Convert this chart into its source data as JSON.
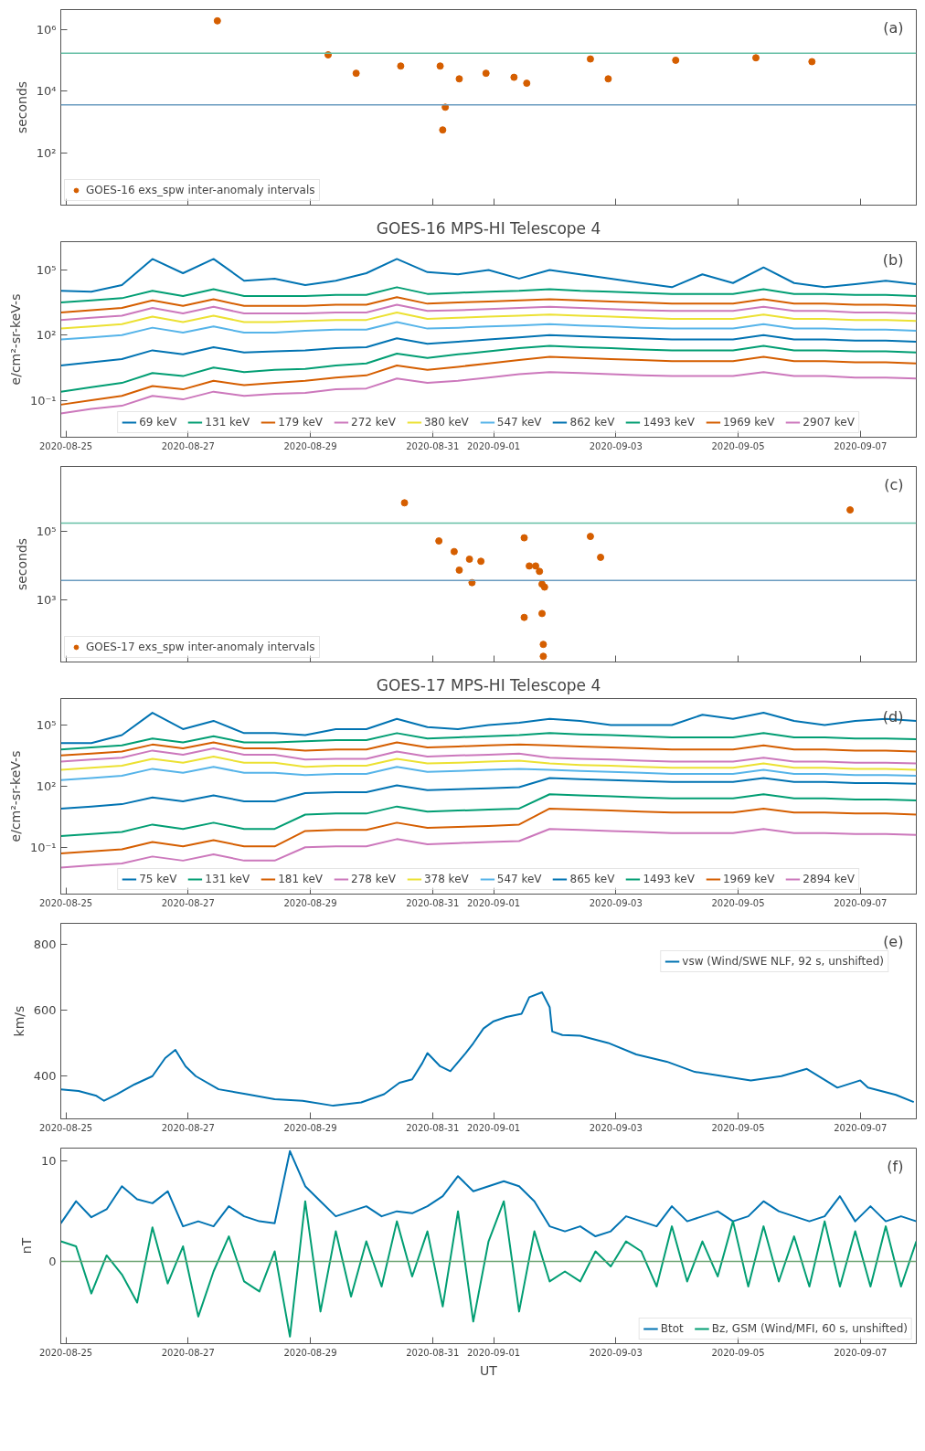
{
  "chart_data": [
    {
      "type": "scatter",
      "ylabel": "seconds",
      "annotations": [
        "(a)"
      ],
      "log": true,
      "marker": "circle",
      "legend": "bottom left",
      "tick_labels": "y",
      "xlim": [
        "2020-08-24T22:00",
        "2020-09-07T22:00"
      ],
      "xticks": [
        "2020-08-25",
        "2020-08-27",
        "2020-08-29",
        "2020-08-31",
        "2020-09-01",
        "2020-09-03",
        "2020-09-05",
        "2020-09-07"
      ],
      "ylim": [
        2,
        4400000
      ],
      "yticks": [
        {
          "value": 100,
          "label": "10²"
        },
        {
          "value": 10000,
          "label": "10⁴"
        },
        {
          "value": 1000000,
          "label": "10⁶"
        }
      ],
      "ref_lines": [
        {
          "axis": "y",
          "value": 170000,
          "color": "#66bfa5"
        },
        {
          "axis": "y",
          "value": 3600,
          "color": "#6a9cc0"
        }
      ],
      "series": [
        {
          "name": "GOES-16 exs_spw inter-anomaly intervals",
          "color": "#d55e00",
          "x": [
            "2020-08-27T11:30",
            "2020-08-29T07:00",
            "2020-08-29T18:00",
            "2020-08-30T11:30",
            "2020-08-31T03:00",
            "2020-08-31T04:00",
            "2020-08-31T05:00",
            "2020-08-31T10:30",
            "2020-08-31T21:00",
            "2020-09-01T08:00",
            "2020-09-01T13:00",
            "2020-09-02T14:00",
            "2020-09-02T21:00",
            "2020-09-03T23:30",
            "2020-09-05T07:00",
            "2020-09-06T05:00"
          ],
          "values": [
            1900000,
            150000,
            38000,
            65000,
            65000,
            550,
            3000,
            25000,
            38000,
            28000,
            18000,
            110000,
            25000,
            100000,
            120000,
            90000
          ]
        }
      ]
    },
    {
      "type": "line",
      "title": "GOES-16 MPS-HI Telescope 4",
      "ylabel": "e/cm²-sr-keV-s",
      "annotations": [
        "(b)"
      ],
      "log": true,
      "legend": "bottom",
      "xlim": [
        "2020-08-24T22:00",
        "2020-09-07T22:00"
      ],
      "xticks": [
        "2020-08-25",
        "2020-08-27",
        "2020-08-29",
        "2020-08-31",
        "2020-09-01",
        "2020-09-03",
        "2020-09-05",
        "2020-09-07"
      ],
      "ylim": [
        0.002,
        2000000
      ],
      "yticks": [
        {
          "value": 0.1,
          "label": "10⁻¹"
        },
        {
          "value": 100,
          "label": "10²"
        },
        {
          "value": 100000,
          "label": "10⁵"
        }
      ],
      "x": [
        "2020-08-24T22:00",
        "2020-08-25T10:00",
        "2020-08-25T22:00",
        "2020-08-26T10:00",
        "2020-08-26T22:00",
        "2020-08-27T10:00",
        "2020-08-27T22:00",
        "2020-08-28T10:00",
        "2020-08-28T22:00",
        "2020-08-29T10:00",
        "2020-08-29T22:00",
        "2020-08-30T10:00",
        "2020-08-30T22:00",
        "2020-08-31T10:00",
        "2020-08-31T22:00",
        "2020-09-01T10:00",
        "2020-09-01T22:00",
        "2020-09-02T10:00",
        "2020-09-02T22:00",
        "2020-09-03T10:00",
        "2020-09-03T22:00",
        "2020-09-04T10:00",
        "2020-09-04T22:00",
        "2020-09-05T10:00",
        "2020-09-05T22:00",
        "2020-09-06T10:00",
        "2020-09-06T22:00",
        "2020-09-07T10:00",
        "2020-09-07T22:00"
      ],
      "series": [
        {
          "name": "69 keV",
          "color": "#0173b2",
          "values": [
            11000.0,
            10000.0,
            20000.0,
            320000.0,
            71000.0,
            320000.0,
            32000.0,
            40000.0,
            20000.0,
            32000.0,
            71000.0,
            320000.0,
            79000.0,
            63000.0,
            100000.0,
            40000.0,
            100000.0,
            63000.0,
            40000.0,
            25000.0,
            16000.0,
            63000.0,
            25000.0,
            130000.0,
            25000.0,
            16000.0,
            22000.0,
            32000.0,
            22000.0
          ]
        },
        {
          "name": "131 keV",
          "color": "#029e73",
          "values": [
            3200.0,
            4000.0,
            5000.0,
            11000.0,
            6300.0,
            13000.0,
            6300.0,
            6300.0,
            6300.0,
            7100.0,
            7100.0,
            16000.0,
            7900.0,
            8900.0,
            10000.0,
            11000.0,
            13000.0,
            11000.0,
            10000.0,
            8900.0,
            7900.0,
            7900.0,
            7900.0,
            13000.0,
            7900.0,
            7900.0,
            7100.0,
            7100.0,
            6300.0
          ]
        },
        {
          "name": "179 keV",
          "color": "#d55e00",
          "values": [
            1100.0,
            1400.0,
            1800.0,
            4000.0,
            2200.0,
            4500.0,
            2200.0,
            2200.0,
            2200.0,
            2500.0,
            2500.0,
            5600.0,
            2800.0,
            3200.0,
            3500.0,
            4000.0,
            4500.0,
            4000.0,
            3500.0,
            3200.0,
            2800.0,
            2800.0,
            2800.0,
            4500.0,
            2800.0,
            2800.0,
            2500.0,
            2500.0,
            2200.0
          ]
        },
        {
          "name": "272 keV",
          "color": "#cc78bc",
          "values": [
            500,
            630,
            790,
            1800.0,
            1000.0,
            2000.0,
            1000.0,
            1000.0,
            1000.0,
            1100.0,
            1100.0,
            2500.0,
            1300.0,
            1400.0,
            1600.0,
            1800.0,
            2000.0,
            1800.0,
            1600.0,
            1400.0,
            1300.0,
            1300.0,
            1300.0,
            2000.0,
            1300.0,
            1300.0,
            1100.0,
            1100.0,
            1000.0
          ]
        },
        {
          "name": "380 keV",
          "color": "#ece133",
          "values": [
            200,
            250,
            320,
            710,
            400,
            790,
            400,
            400,
            450,
            500,
            500,
            1100.0,
            560,
            630,
            710,
            790,
            890,
            790,
            710,
            630,
            560,
            560,
            560,
            890,
            560,
            560,
            500,
            500,
            450
          ]
        },
        {
          "name": "547 keV",
          "color": "#56b4e9",
          "values": [
            63,
            79,
            100,
            220,
            130,
            250,
            130,
            130,
            160,
            180,
            180,
            400,
            200,
            220,
            250,
            280,
            320,
            280,
            250,
            220,
            200,
            200,
            200,
            320,
            200,
            200,
            180,
            180,
            160
          ]
        },
        {
          "name": "862 keV",
          "color": "#0173b2",
          "values": [
            4.0,
            5.6,
            7.9,
            20,
            13,
            28,
            16,
            18,
            20,
            25,
            28,
            71,
            40,
            50,
            63,
            79,
            100,
            89,
            79,
            71,
            63,
            63,
            63,
            100,
            63,
            63,
            56,
            56,
            50
          ]
        },
        {
          "name": "1493 keV",
          "color": "#029e73",
          "values": [
            0.25,
            0.4,
            0.63,
            1.8,
            1.3,
            3.2,
            2.0,
            2.5,
            2.8,
            4.0,
            5.0,
            14,
            8.9,
            13,
            18,
            25,
            32,
            28,
            25,
            22,
            20,
            20,
            20,
            32,
            20,
            20,
            18,
            18,
            16
          ]
        },
        {
          "name": "1969 keV",
          "color": "#d55e00",
          "values": [
            0.063,
            0.1,
            0.16,
            0.45,
            0.32,
            0.79,
            0.5,
            0.63,
            0.79,
            1.1,
            1.4,
            4.0,
            2.5,
            3.5,
            5.0,
            7.1,
            10,
            8.9,
            7.9,
            7.1,
            6.3,
            6.3,
            6.3,
            10,
            6.3,
            6.3,
            5.6,
            5.6,
            5.0
          ]
        },
        {
          "name": "2907 keV",
          "color": "#cc78bc",
          "values": [
            0.025,
            0.04,
            0.056,
            0.16,
            0.11,
            0.25,
            0.16,
            0.2,
            0.22,
            0.32,
            0.35,
            1.0,
            0.63,
            0.79,
            1.1,
            1.6,
            2.0,
            1.8,
            1.6,
            1.4,
            1.3,
            1.3,
            1.3,
            2.0,
            1.3,
            1.3,
            1.1,
            1.1,
            1.0
          ]
        }
      ]
    },
    {
      "type": "scatter",
      "ylabel": "seconds",
      "annotations": [
        "(c)"
      ],
      "log": true,
      "marker": "circle",
      "legend": "bottom left",
      "tick_labels": "y",
      "xlim": [
        "2020-08-24T22:00",
        "2020-09-07T22:00"
      ],
      "xticks": [
        "2020-08-25",
        "2020-08-27",
        "2020-08-29",
        "2020-08-31",
        "2020-09-01",
        "2020-09-03",
        "2020-09-05",
        "2020-09-07"
      ],
      "ylim": [
        15,
        7600000
      ],
      "yticks": [
        {
          "value": 1000,
          "label": "10³"
        },
        {
          "value": 100000,
          "label": "10⁵"
        }
      ],
      "ref_lines": [
        {
          "axis": "y",
          "value": 170000,
          "color": "#66bfa5"
        },
        {
          "axis": "y",
          "value": 3600,
          "color": "#6a9cc0"
        }
      ],
      "series": [
        {
          "name": "GOES-17 exs_spw inter-anomaly intervals",
          "color": "#d55e00",
          "x": [
            "2020-08-30T13:00",
            "2020-08-31T02:30",
            "2020-08-31T08:30",
            "2020-08-31T10:30",
            "2020-08-31T14:30",
            "2020-08-31T15:30",
            "2020-08-31T19:00",
            "2020-09-01T12:00",
            "2020-09-01T12:00",
            "2020-09-01T14:00",
            "2020-09-01T16:30",
            "2020-09-01T18:00",
            "2020-09-01T19:00",
            "2020-09-01T19:00",
            "2020-09-01T19:30",
            "2020-09-01T19:30",
            "2020-09-01T20:00",
            "2020-09-02T14:00",
            "2020-09-02T18:00",
            "2020-09-06T20:00"
          ],
          "values": [
            660000,
            51000,
            25000,
            7200,
            15000,
            3100,
            13000,
            63000,
            300,
            9500,
            9500,
            6600,
            2800,
            390,
            49,
            22,
            2300,
            69000,
            17000,
            410000
          ]
        }
      ]
    },
    {
      "type": "line",
      "title": "GOES-17 MPS-HI Telescope 4",
      "ylabel": "e/cm²-sr-keV-s",
      "annotations": [
        "(d)"
      ],
      "log": true,
      "legend": "bottom",
      "xlim": [
        "2020-08-24T22:00",
        "2020-09-07T22:00"
      ],
      "xticks": [
        "2020-08-25",
        "2020-08-27",
        "2020-08-29",
        "2020-08-31",
        "2020-09-01",
        "2020-09-03",
        "2020-09-05",
        "2020-09-07"
      ],
      "ylim": [
        0.0005,
        2000000
      ],
      "yticks": [
        {
          "value": 0.1,
          "label": "10⁻¹"
        },
        {
          "value": 100,
          "label": "10²"
        },
        {
          "value": 100000,
          "label": "10⁵"
        }
      ],
      "x": [
        "2020-08-24T22:00",
        "2020-08-25T10:00",
        "2020-08-25T22:00",
        "2020-08-26T10:00",
        "2020-08-26T22:00",
        "2020-08-27T10:00",
        "2020-08-27T22:00",
        "2020-08-28T10:00",
        "2020-08-28T22:00",
        "2020-08-29T10:00",
        "2020-08-29T22:00",
        "2020-08-30T10:00",
        "2020-08-30T22:00",
        "2020-08-31T10:00",
        "2020-08-31T22:00",
        "2020-09-01T10:00",
        "2020-09-01T22:00",
        "2020-09-02T10:00",
        "2020-09-02T22:00",
        "2020-09-03T10:00",
        "2020-09-03T22:00",
        "2020-09-04T10:00",
        "2020-09-04T22:00",
        "2020-09-05T10:00",
        "2020-09-05T22:00",
        "2020-09-06T10:00",
        "2020-09-06T22:00",
        "2020-09-07T10:00",
        "2020-09-07T22:00"
      ],
      "series": [
        {
          "name": "75 keV",
          "color": "#0173b2",
          "values": [
            13000.0,
            13000.0,
            32000.0,
            400000.0,
            63000.0,
            160000.0,
            40000.0,
            40000.0,
            32000.0,
            63000.0,
            63000.0,
            200000.0,
            79000.0,
            63000.0,
            100000.0,
            130000.0,
            200000.0,
            160000.0,
            100000.0,
            100000.0,
            100000.0,
            320000.0,
            200000.0,
            400000.0,
            160000.0,
            100000.0,
            160000.0,
            200000.0,
            160000.0
          ]
        },
        {
          "name": "131 keV",
          "color": "#029e73",
          "values": [
            6300.0,
            7900.0,
            10000.0,
            22000.0,
            14000.0,
            28000.0,
            14000.0,
            14000.0,
            16000.0,
            18000.0,
            18000.0,
            40000.0,
            22000.0,
            25000.0,
            28000.0,
            32000.0,
            40000.0,
            35000.0,
            32000.0,
            28000.0,
            25000.0,
            25000.0,
            25000.0,
            40000.0,
            25000.0,
            25000.0,
            22000.0,
            22000.0,
            20000.0
          ]
        },
        {
          "name": "181 keV",
          "color": "#d55e00",
          "values": [
            3200.0,
            4000.0,
            5000.0,
            11000.0,
            7100.0,
            14000.0,
            7100.0,
            7100.0,
            5600.0,
            6300.0,
            6300.0,
            14000.0,
            7900.0,
            8900.0,
            10000.0,
            11000.0,
            10000.0,
            8900.0,
            7900.0,
            7100.0,
            6300.0,
            6300.0,
            6300.0,
            10000.0,
            6300.0,
            6300.0,
            5600.0,
            5600.0,
            5000.0
          ]
        },
        {
          "name": "278 keV",
          "color": "#cc78bc",
          "values": [
            1600.0,
            2000.0,
            2500.0,
            5600.0,
            3500.0,
            7100.0,
            3500.0,
            3500.0,
            2000.0,
            2200.0,
            2200.0,
            5000.0,
            2800.0,
            3200.0,
            3500.0,
            4000.0,
            2500.0,
            2200.0,
            2000.0,
            1800.0,
            1600.0,
            1600.0,
            1600.0,
            2500.0,
            1600.0,
            1600.0,
            1400.0,
            1400.0,
            1300.0
          ]
        },
        {
          "name": "378 keV",
          "color": "#ece133",
          "values": [
            630,
            790,
            1000.0,
            2200.0,
            1400.0,
            2800.0,
            1400.0,
            1400.0,
            890,
            1000.0,
            1000.0,
            2200.0,
            1300.0,
            1400.0,
            1600.0,
            1800.0,
            1300.0,
            1100.0,
            1000.0,
            890,
            790,
            790,
            790,
            1300.0,
            790,
            790,
            710,
            710,
            630
          ]
        },
        {
          "name": "547 keV",
          "color": "#56b4e9",
          "values": [
            200,
            250,
            320,
            710,
            450,
            890,
            450,
            450,
            350,
            400,
            400,
            890,
            500,
            560,
            630,
            710,
            630,
            560,
            500,
            450,
            400,
            400,
            400,
            630,
            400,
            400,
            350,
            350,
            320
          ]
        },
        {
          "name": "865 keV",
          "color": "#0173b2",
          "values": [
            7.9,
            10,
            13,
            28,
            18,
            35,
            18,
            18,
            45,
            50,
            50,
            110,
            63,
            71,
            79,
            89,
            250,
            220,
            200,
            180,
            160,
            160,
            160,
            250,
            160,
            160,
            140,
            140,
            130
          ]
        },
        {
          "name": "1493 keV",
          "color": "#029e73",
          "values": [
            0.35,
            0.45,
            0.56,
            1.3,
            0.79,
            1.6,
            0.79,
            0.79,
            4.0,
            4.5,
            4.5,
            10,
            5.6,
            6.3,
            7.1,
            7.9,
            40,
            35,
            32,
            28,
            25,
            25,
            25,
            40,
            25,
            25,
            22,
            22,
            20
          ]
        },
        {
          "name": "1969 keV",
          "color": "#d55e00",
          "values": [
            0.05,
            0.063,
            0.079,
            0.18,
            0.11,
            0.22,
            0.11,
            0.11,
            0.63,
            0.71,
            0.71,
            1.6,
            0.89,
            1.0,
            1.1,
            1.3,
            7.9,
            7.1,
            6.3,
            5.6,
            5.0,
            5.0,
            5.0,
            7.9,
            5.0,
            5.0,
            4.5,
            4.5,
            4.0
          ]
        },
        {
          "name": "2894 keV",
          "color": "#cc78bc",
          "values": [
            0.01,
            0.013,
            0.016,
            0.035,
            0.022,
            0.045,
            0.022,
            0.022,
            0.1,
            0.11,
            0.11,
            0.25,
            0.14,
            0.16,
            0.18,
            0.2,
            0.79,
            0.71,
            0.63,
            0.56,
            0.5,
            0.5,
            0.5,
            0.79,
            0.5,
            0.5,
            0.45,
            0.45,
            0.4
          ]
        }
      ]
    },
    {
      "type": "line",
      "ylabel": "km/s",
      "annotations": [
        "(e)"
      ],
      "legend": "top right",
      "xlim": [
        "2020-08-24T22:00",
        "2020-09-07T22:00"
      ],
      "xticks": [
        "2020-08-25",
        "2020-08-27",
        "2020-08-29",
        "2020-08-31",
        "2020-09-01",
        "2020-09-03",
        "2020-09-05",
        "2020-09-07"
      ],
      "ylim": [
        270,
        865
      ],
      "yticks": [
        400,
        600,
        800
      ],
      "x": [
        "2020-08-24T22:00",
        "2020-08-25T05:00",
        "2020-08-25T12:00",
        "2020-08-25T15:00",
        "2020-08-25T20:00",
        "2020-08-26T03:00",
        "2020-08-26T10:00",
        "2020-08-26T15:00",
        "2020-08-26T19:00",
        "2020-08-26T23:00",
        "2020-08-27T03:00",
        "2020-08-27T12:00",
        "2020-08-27T23:00",
        "2020-08-28T10:00",
        "2020-08-28T21:00",
        "2020-08-29T09:00",
        "2020-08-29T20:00",
        "2020-08-30T05:00",
        "2020-08-30T11:00",
        "2020-08-30T16:00",
        "2020-08-30T20:00",
        "2020-08-30T22:00",
        "2020-08-31T03:00",
        "2020-08-31T07:00",
        "2020-08-31T13:00",
        "2020-08-31T16:00",
        "2020-08-31T20:00",
        "2020-09-01T00:00",
        "2020-09-01T05:00",
        "2020-09-01T11:00",
        "2020-09-01T14:00",
        "2020-09-01T19:00",
        "2020-09-01T22:00",
        "2020-09-01T23:00",
        "2020-09-02T03:00",
        "2020-09-02T10:00",
        "2020-09-02T21:00",
        "2020-09-03T08:00",
        "2020-09-03T20:00",
        "2020-09-04T07:00",
        "2020-09-04T18:00",
        "2020-09-05T05:00",
        "2020-09-05T17:00",
        "2020-09-06T03:00",
        "2020-09-06T15:00",
        "2020-09-07T00:00",
        "2020-09-07T03:00",
        "2020-09-07T14:00",
        "2020-09-07T21:00"
      ],
      "series": [
        {
          "name": "vsw (Wind/SWE NLF, 92 s, unshifted)",
          "color": "#0173b2",
          "values": [
            360,
            355,
            340,
            325,
            345,
            375,
            400,
            455,
            480,
            430,
            400,
            360,
            345,
            330,
            325,
            310,
            320,
            345,
            380,
            390,
            440,
            470,
            430,
            415,
            470,
            500,
            545,
            567,
            580,
            590,
            640,
            655,
            610,
            536,
            525,
            523,
            501,
            466,
            444,
            413,
            400,
            387,
            400,
            422,
            365,
            387,
            365,
            343,
            321
          ]
        }
      ]
    },
    {
      "type": "line",
      "ylabel": "nT",
      "xlabel": "UT",
      "annotations": [
        "(f)"
      ],
      "legend": "bottom right",
      "xlim": [
        "2020-08-24T22:00",
        "2020-09-07T22:00"
      ],
      "xticks": [
        "2020-08-25",
        "2020-08-27",
        "2020-08-29",
        "2020-08-31",
        "2020-09-01",
        "2020-09-03",
        "2020-09-05",
        "2020-09-07"
      ],
      "ylim": [
        -8.2,
        11.3
      ],
      "yticks": [
        0,
        10
      ],
      "ref_lines": [
        {
          "axis": "y",
          "value": 0,
          "color": "#6aa36f"
        }
      ],
      "x": [
        "2020-08-24T22:00",
        "2020-08-25T04:00",
        "2020-08-25T10:00",
        "2020-08-25T16:00",
        "2020-08-25T22:00",
        "2020-08-26T04:00",
        "2020-08-26T10:00",
        "2020-08-26T16:00",
        "2020-08-26T22:00",
        "2020-08-27T04:00",
        "2020-08-27T10:00",
        "2020-08-27T16:00",
        "2020-08-27T22:00",
        "2020-08-28T04:00",
        "2020-08-28T10:00",
        "2020-08-28T16:00",
        "2020-08-28T22:00",
        "2020-08-29T04:00",
        "2020-08-29T10:00",
        "2020-08-29T16:00",
        "2020-08-29T22:00",
        "2020-08-30T04:00",
        "2020-08-30T10:00",
        "2020-08-30T16:00",
        "2020-08-30T22:00",
        "2020-08-31T04:00",
        "2020-08-31T10:00",
        "2020-08-31T16:00",
        "2020-08-31T22:00",
        "2020-09-01T04:00",
        "2020-09-01T10:00",
        "2020-09-01T16:00",
        "2020-09-01T22:00",
        "2020-09-02T04:00",
        "2020-09-02T10:00",
        "2020-09-02T16:00",
        "2020-09-02T22:00",
        "2020-09-03T04:00",
        "2020-09-03T10:00",
        "2020-09-03T16:00",
        "2020-09-03T22:00",
        "2020-09-04T04:00",
        "2020-09-04T10:00",
        "2020-09-04T16:00",
        "2020-09-04T22:00",
        "2020-09-05T04:00",
        "2020-09-05T10:00",
        "2020-09-05T16:00",
        "2020-09-05T22:00",
        "2020-09-06T04:00",
        "2020-09-06T10:00",
        "2020-09-06T16:00",
        "2020-09-06T22:00",
        "2020-09-07T04:00",
        "2020-09-07T10:00",
        "2020-09-07T16:00",
        "2020-09-07T22:00"
      ],
      "series": [
        {
          "name": "Btot",
          "color": "#0173b2",
          "values": [
            3.8,
            6.0,
            4.4,
            5.2,
            7.5,
            6.2,
            5.8,
            7.0,
            3.5,
            4.0,
            3.5,
            5.5,
            4.5,
            4.0,
            3.8,
            11.0,
            7.5,
            6.0,
            4.5,
            5.0,
            5.5,
            4.5,
            5.0,
            4.8,
            5.5,
            6.5,
            8.5,
            7.0,
            7.5,
            8.0,
            7.5,
            6.0,
            3.5,
            3.0,
            3.5,
            2.5,
            3.0,
            4.5,
            4.0,
            3.5,
            5.5,
            4.0,
            4.5,
            5.0,
            4.0,
            4.5,
            6.0,
            5.0,
            4.5,
            4.0,
            4.5,
            6.5,
            4.0,
            5.5,
            4.0,
            4.5,
            4.0
          ]
        },
        {
          "name": "Bz, GSM (Wind/MFI, 60 s, unshifted)",
          "color": "#029e73",
          "values": [
            2.0,
            1.5,
            -3.2,
            0.6,
            -1.3,
            -4.1,
            3.4,
            -2.2,
            1.5,
            -5.5,
            -1.0,
            2.5,
            -2.0,
            -3.0,
            1.0,
            -7.5,
            6.0,
            -5.0,
            3.0,
            -3.5,
            2.0,
            -2.5,
            4.0,
            -1.5,
            3.0,
            -4.5,
            5.0,
            -6.0,
            2.0,
            6.0,
            -5.0,
            3.0,
            -2.0,
            -1.0,
            -2.0,
            1.0,
            -0.5,
            2.0,
            1.0,
            -2.5,
            3.5,
            -2.0,
            2.0,
            -1.5,
            4.0,
            -2.5,
            3.5,
            -2.0,
            2.5,
            -2.5,
            4.0,
            -2.5,
            3.0,
            -2.5,
            3.5,
            -2.5,
            2.0
          ]
        }
      ]
    }
  ]
}
